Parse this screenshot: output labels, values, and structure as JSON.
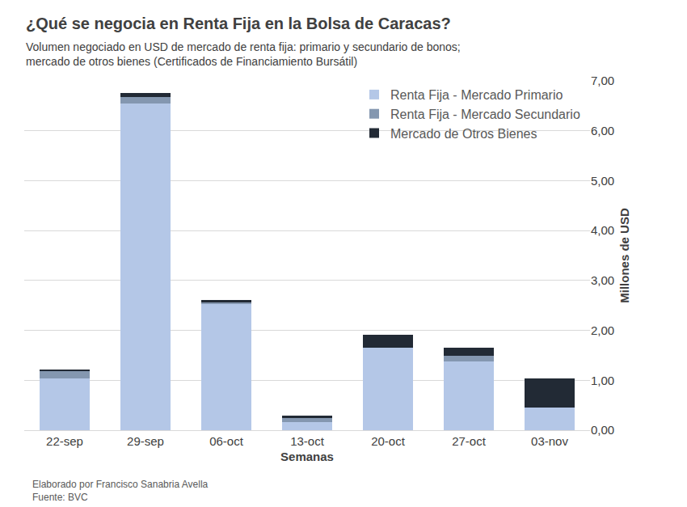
{
  "chart_data": {
    "type": "bar",
    "title": "¿Qué se negocia en Renta Fija en la Bolsa de Caracas?",
    "subtitle": "Volumen negociado en USD de mercado de renta fija: primario y secundario de bonos; mercado de otros bienes (Certificados de Financiamiento Bursátil)",
    "x_label": "Semanas",
    "y_label": "Millones de USD",
    "annotations": [
      "Elaborado por Francisco Sanabria Avella",
      "Fuente: BVC"
    ],
    "categories": [
      "22-sep",
      "29-sep",
      "06-oct",
      "13-oct",
      "20-oct",
      "27-oct",
      "03-nov"
    ],
    "series": [
      {
        "name": "Renta Fija - Mercado Primario",
        "color": "#b4c7e7",
        "values": [
          1.03,
          6.55,
          2.52,
          0.17,
          1.66,
          1.38,
          0.45
        ]
      },
      {
        "name": "Renta Fija - Mercado Secundario",
        "color": "#8497b0",
        "values": [
          0.15,
          0.13,
          0.04,
          0.08,
          0.0,
          0.11,
          0.0
        ]
      },
      {
        "name": "Mercado de Otros Bienes",
        "color": "#222a35",
        "values": [
          0.04,
          0.08,
          0.05,
          0.04,
          0.25,
          0.17,
          0.59
        ]
      }
    ],
    "stacked": true,
    "ylim": [
      0,
      7
    ],
    "yticks": [
      {
        "value": 0,
        "label": "0,00"
      },
      {
        "value": 1,
        "label": "1,00"
      },
      {
        "value": 2,
        "label": "2,00"
      },
      {
        "value": 3,
        "label": "3,00"
      },
      {
        "value": 4,
        "label": "4,00"
      },
      {
        "value": 5,
        "label": "5,00"
      },
      {
        "value": 6,
        "label": "6,00"
      },
      {
        "value": 7,
        "label": "7,00"
      }
    ],
    "grid": true,
    "legend": "top right"
  }
}
